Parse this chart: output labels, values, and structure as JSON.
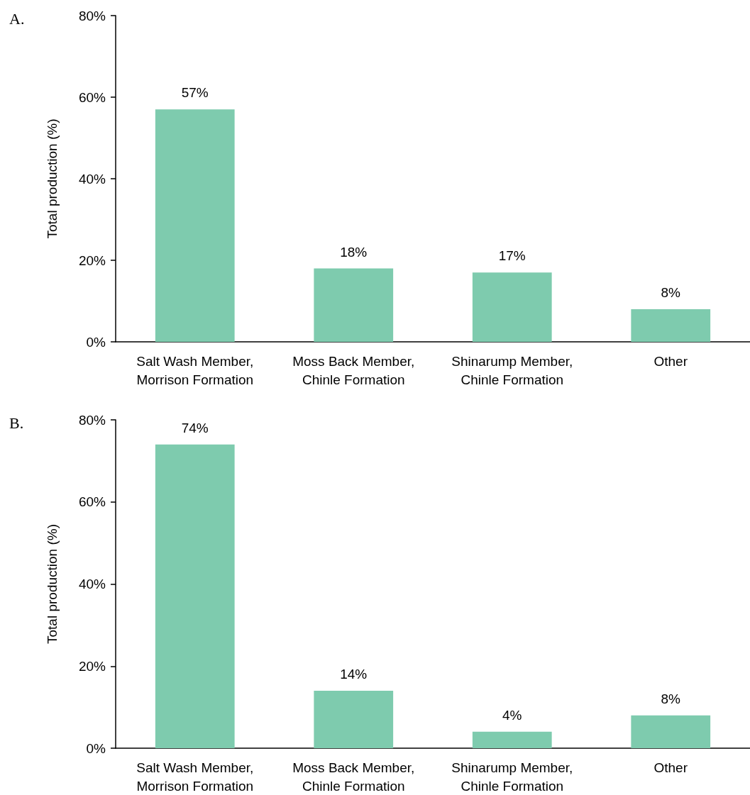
{
  "chart_data": [
    {
      "type": "bar",
      "title": "A.",
      "ylabel": "Total production (%)",
      "categories": [
        "Salt Wash Member,\nMorrison Formation",
        "Moss Back Member,\nChinle Formation",
        "Shinarump Member,\nChinle Formation",
        "Other"
      ],
      "values": [
        57,
        18,
        17,
        8
      ],
      "value_labels": [
        "57%",
        "18%",
        "17%",
        "8%"
      ],
      "color": "#7ecbae",
      "ylim": [
        0,
        80
      ],
      "yticks": [
        {
          "value": 0,
          "label": "0%"
        },
        {
          "value": 20,
          "label": "20%"
        },
        {
          "value": 40,
          "label": "40%"
        },
        {
          "value": 60,
          "label": "60%"
        },
        {
          "value": 80,
          "label": "80%"
        }
      ],
      "grid": false
    },
    {
      "type": "bar",
      "title": "B.",
      "ylabel": "Total production (%)",
      "categories": [
        "Salt Wash Member,\nMorrison Formation",
        "Moss Back Member,\nChinle Formation",
        "Shinarump Member,\nChinle Formation",
        "Other"
      ],
      "values": [
        74,
        14,
        4,
        8
      ],
      "value_labels": [
        "74%",
        "14%",
        "4%",
        "8%"
      ],
      "color": "#7ecbae",
      "ylim": [
        0,
        80
      ],
      "yticks": [
        {
          "value": 0,
          "label": "0%"
        },
        {
          "value": 20,
          "label": "20%"
        },
        {
          "value": 40,
          "label": "40%"
        },
        {
          "value": 60,
          "label": "60%"
        },
        {
          "value": 80,
          "label": "80%"
        }
      ],
      "grid": false
    }
  ]
}
